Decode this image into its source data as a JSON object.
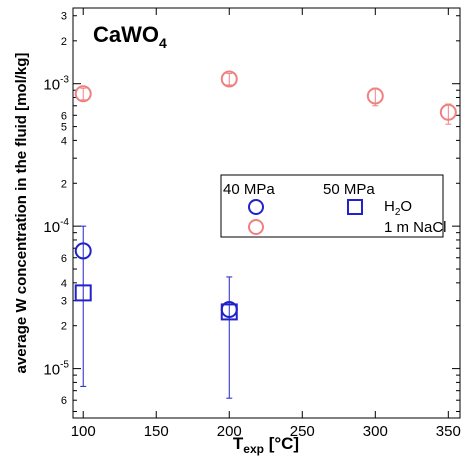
{
  "chart_data": {
    "type": "scatter",
    "title_main": "CaWO",
    "title_sub": "4",
    "xlabel_main": "T",
    "xlabel_sub": "exp",
    "xlabel_unit": " [°C]",
    "ylabel": "average W concentration in the fluid [mol/kg]",
    "x_scale": "linear",
    "y_scale": "log",
    "xlim": [
      93,
      358
    ],
    "ylim": [
      4.5e-06,
      0.0034
    ],
    "x_ticks": [
      100,
      150,
      200,
      250,
      300,
      350
    ],
    "x_tick_labels": [
      "100",
      "150",
      "200",
      "250",
      "300",
      "350"
    ],
    "y_major_ticks": [
      1e-05,
      0.0001,
      0.001
    ],
    "y_major_labels": [
      {
        "base": "10",
        "exp": "-5"
      },
      {
        "base": "10",
        "exp": "-4"
      },
      {
        "base": "10",
        "exp": "-3"
      }
    ],
    "y_minor_labeled": [
      {
        "value": 6e-06,
        "label": "6"
      },
      {
        "value": 2e-05,
        "label": "2"
      },
      {
        "value": 3e-05,
        "label": "3"
      },
      {
        "value": 4e-05,
        "label": "4"
      },
      {
        "value": 6e-05,
        "label": "6"
      },
      {
        "value": 0.0002,
        "label": "2"
      },
      {
        "value": 0.0004,
        "label": "4"
      },
      {
        "value": 0.0005,
        "label": "5"
      },
      {
        "value": 0.0006,
        "label": "6"
      },
      {
        "value": 0.002,
        "label": "2"
      },
      {
        "value": 0.003,
        "label": "3"
      }
    ],
    "legend": {
      "placement": "center-right",
      "headers": [
        "40 MPa",
        "50 MPa"
      ],
      "rows": [
        {
          "label_main": "H",
          "label_sub": "2",
          "label_rest": "O"
        },
        {
          "label_main": "1 m NaCl",
          "label_sub": "",
          "label_rest": ""
        }
      ]
    },
    "series": [
      {
        "marker": "circle",
        "color": "#2222cc",
        "points": [
          {
            "x": 100,
            "y": 6.7e-05,
            "err_low": 7.5e-06,
            "err_high": 0.0001
          },
          {
            "x": 200,
            "y": 2.6e-05,
            "err_low": 6.2e-06,
            "err_high": 4.4e-05
          }
        ]
      },
      {
        "marker": "square",
        "color": "#2222cc",
        "points": [
          {
            "x": 100,
            "y": 3.4e-05
          },
          {
            "x": 200,
            "y": 2.5e-05
          }
        ]
      },
      {
        "marker": "circle",
        "color": "#f08080",
        "points": [
          {
            "x": 100,
            "y": 0.00085,
            "err_low": 0.00077,
            "err_high": 0.00093
          },
          {
            "x": 200,
            "y": 0.00108,
            "err_low": 0.00098,
            "err_high": 0.00118
          },
          {
            "x": 300,
            "y": 0.00082,
            "err_low": 0.0007,
            "err_high": 0.00093
          },
          {
            "x": 350,
            "y": 0.00063,
            "err_low": 0.00052,
            "err_high": 0.00072
          }
        ]
      }
    ]
  }
}
